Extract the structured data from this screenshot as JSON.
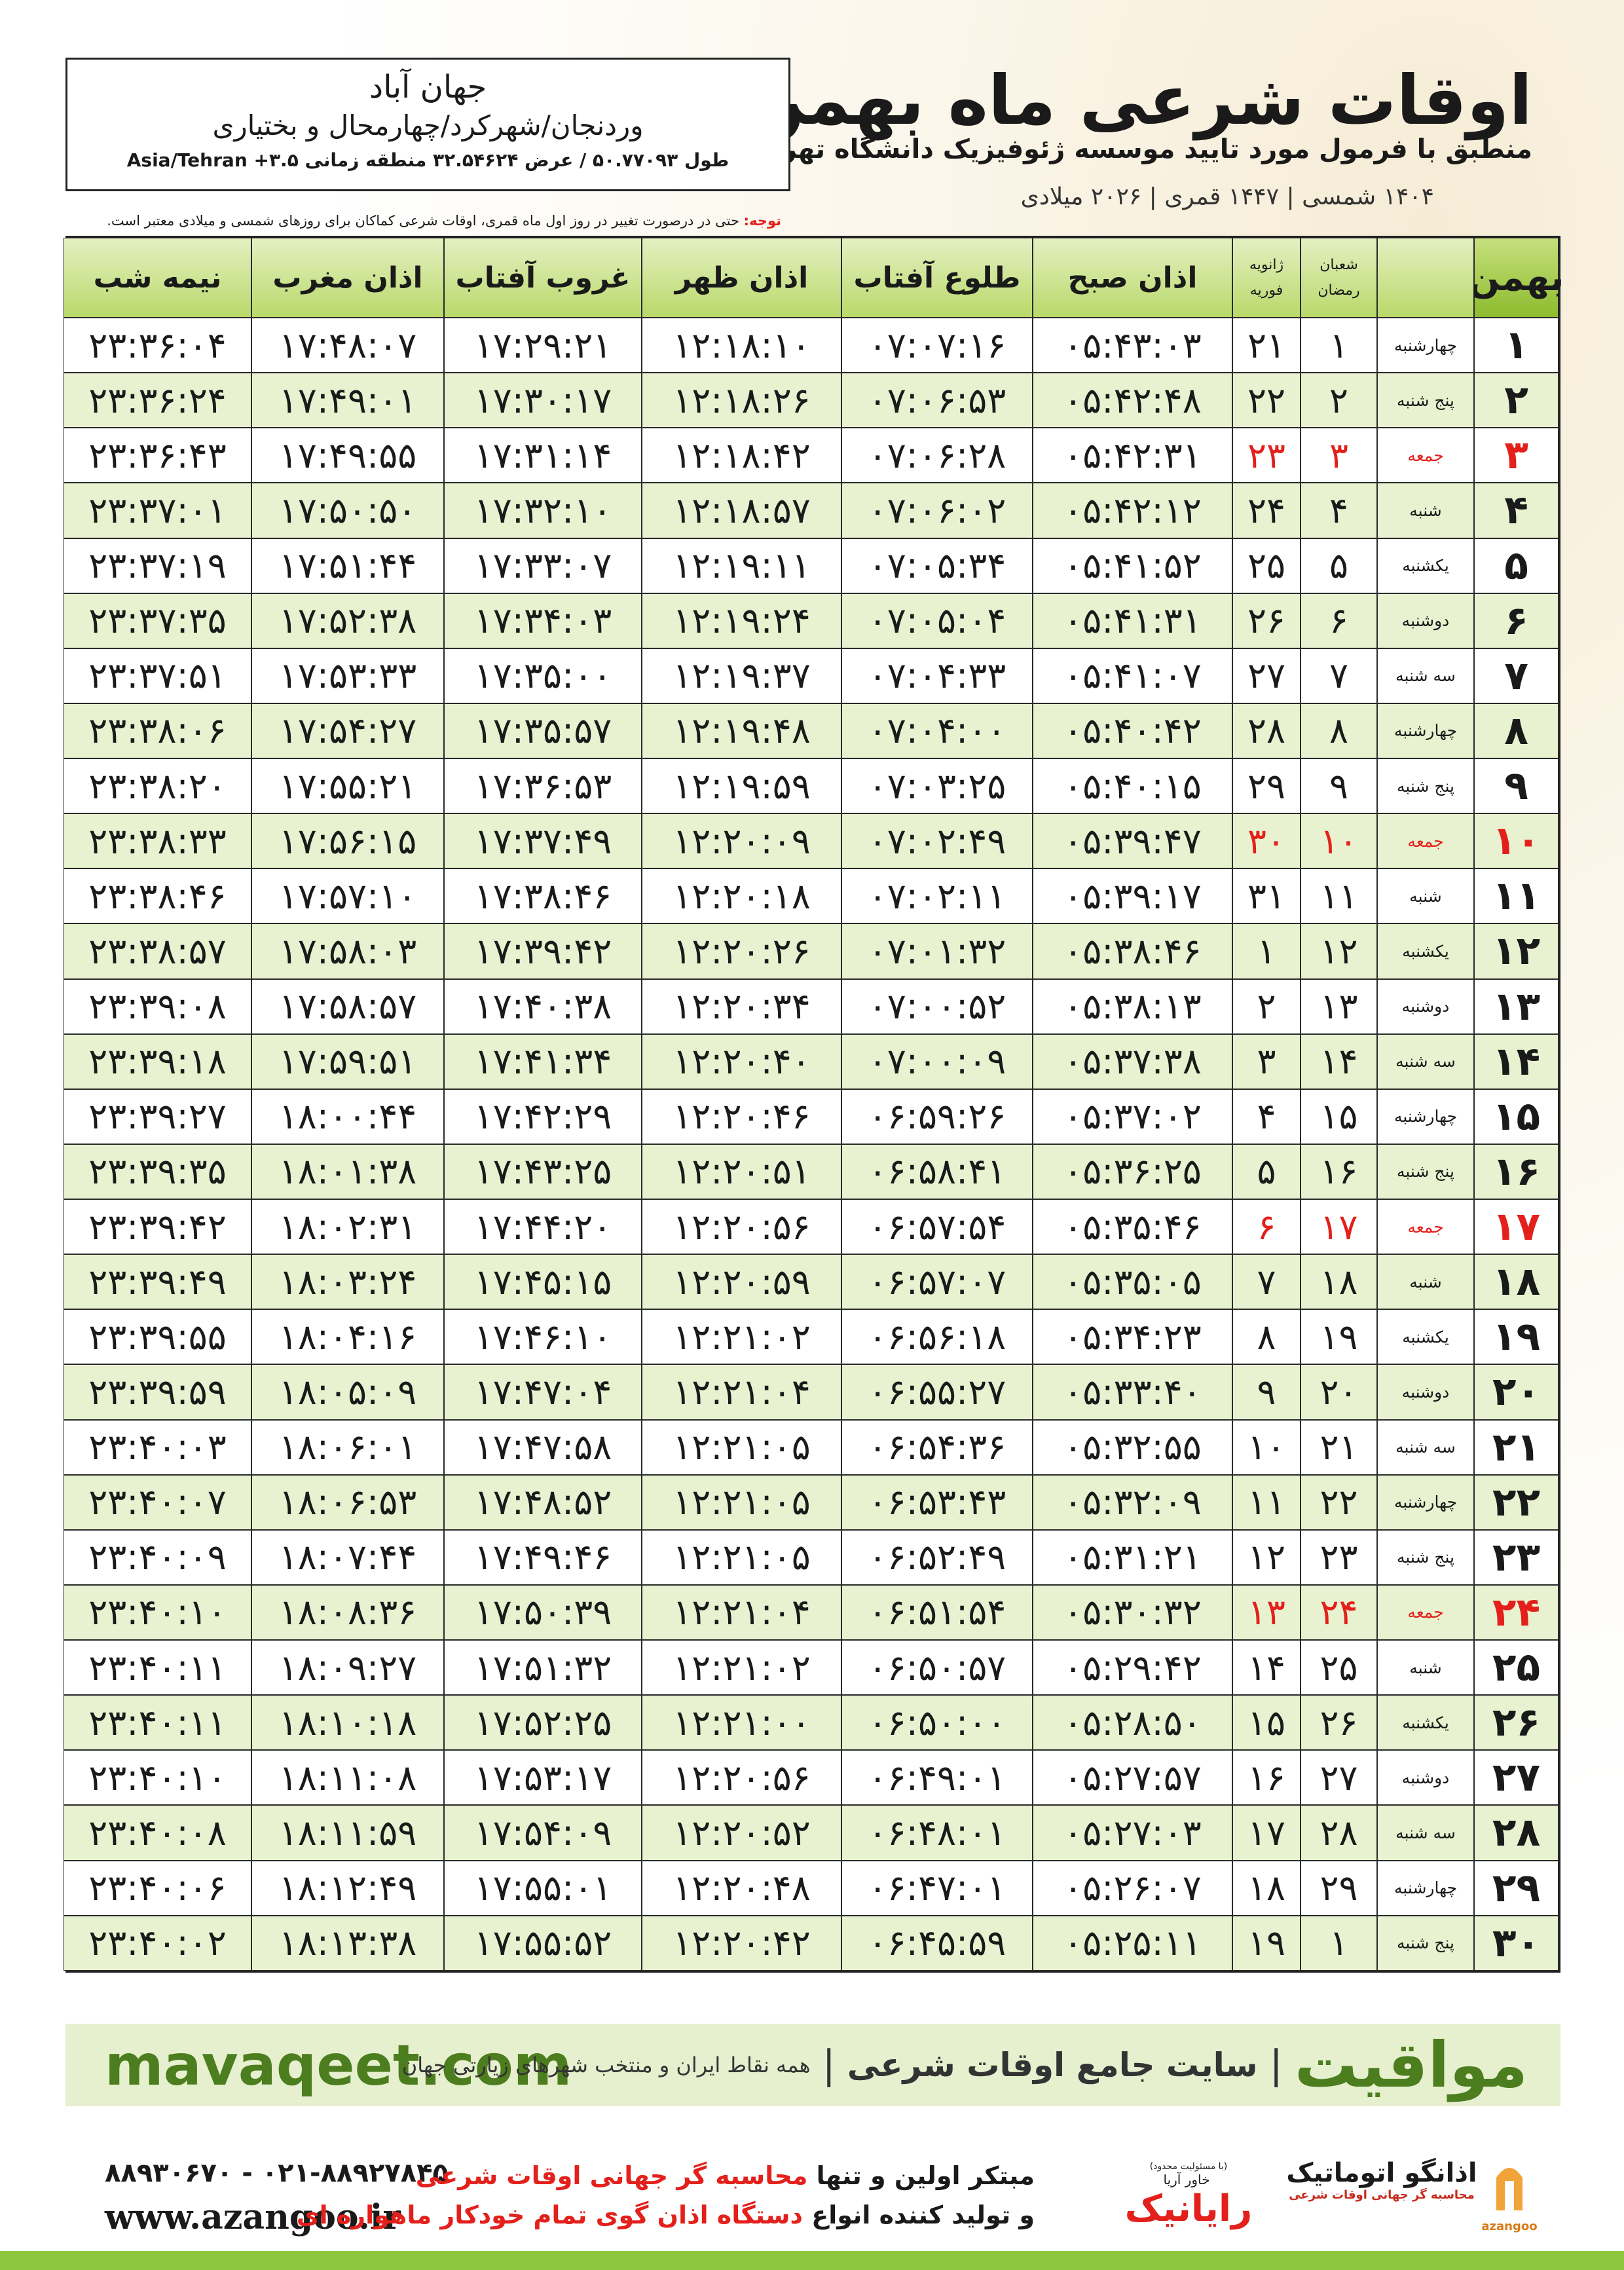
{
  "header": {
    "title": "اوقات شرعی ماه بهمن",
    "subtitle": "منطبق با فرمول مورد تایید موسسه ژئوفیزیک دانشگاه تهران",
    "dates": "۱۴۰۴ شمسی | ۱۴۴۷ قمری | ۲۰۲۶ میلادی"
  },
  "location": {
    "name": "جهان آباد",
    "region": "وردنجان/شهرکرد/چهارمحال و بختیاری",
    "coords": "طول ۵۰.۷۷۰۹۳ / عرض ۳۲.۵۴۶۲۴ منطقه زمانی ۳.۵+ Asia/Tehran"
  },
  "note": {
    "label": "توجه:",
    "text": "حتی در درصورت تغییر در روز اول ماه قمری، اوقات شرعی کماکان برای روزهای شمسی و میلادی معتبر است."
  },
  "table": {
    "columns": [
      "بهمن",
      "",
      [
        "شعبان",
        "رمضان"
      ],
      [
        "ژانویه",
        "فوریه"
      ],
      "اذان صبح",
      "طلوع آفتاب",
      "اذان ظهر",
      "غروب آفتاب",
      "اذان مغرب",
      "نیمه شب"
    ],
    "rows": [
      {
        "cells": [
          "۱",
          "چهارشنبه",
          "۱",
          "۲۱",
          "۰۵:۴۳:۰۳",
          "۰۷:۰۷:۱۶",
          "۱۲:۱۸:۱۰",
          "۱۷:۲۹:۲۱",
          "۱۷:۴۸:۰۷",
          "۲۳:۳۶:۰۴"
        ]
      },
      {
        "cells": [
          "۲",
          "پنج شنبه",
          "۲",
          "۲۲",
          "۰۵:۴۲:۴۸",
          "۰۷:۰۶:۵۳",
          "۱۲:۱۸:۲۶",
          "۱۷:۳۰:۱۷",
          "۱۷:۴۹:۰۱",
          "۲۳:۳۶:۲۴"
        ]
      },
      {
        "cells": [
          "۳",
          "جمعه",
          "۳",
          "۲۳",
          "۰۵:۴۲:۳۱",
          "۰۷:۰۶:۲۸",
          "۱۲:۱۸:۴۲",
          "۱۷:۳۱:۱۴",
          "۱۷:۴۹:۵۵",
          "۲۳:۳۶:۴۳"
        ],
        "color": "#e3201b"
      },
      {
        "cells": [
          "۴",
          "شنبه",
          "۴",
          "۲۴",
          "۰۵:۴۲:۱۲",
          "۰۷:۰۶:۰۲",
          "۱۲:۱۸:۵۷",
          "۱۷:۳۲:۱۰",
          "۱۷:۵۰:۵۰",
          "۲۳:۳۷:۰۱"
        ]
      },
      {
        "cells": [
          "۵",
          "یکشنبه",
          "۵",
          "۲۵",
          "۰۵:۴۱:۵۲",
          "۰۷:۰۵:۳۴",
          "۱۲:۱۹:۱۱",
          "۱۷:۳۳:۰۷",
          "۱۷:۵۱:۴۴",
          "۲۳:۳۷:۱۹"
        ]
      },
      {
        "cells": [
          "۶",
          "دوشنبه",
          "۶",
          "۲۶",
          "۰۵:۴۱:۳۱",
          "۰۷:۰۵:۰۴",
          "۱۲:۱۹:۲۴",
          "۱۷:۳۴:۰۳",
          "۱۷:۵۲:۳۸",
          "۲۳:۳۷:۳۵"
        ]
      },
      {
        "cells": [
          "۷",
          "سه شنبه",
          "۷",
          "۲۷",
          "۰۵:۴۱:۰۷",
          "۰۷:۰۴:۳۳",
          "۱۲:۱۹:۳۷",
          "۱۷:۳۵:۰۰",
          "۱۷:۵۳:۳۳",
          "۲۳:۳۷:۵۱"
        ]
      },
      {
        "cells": [
          "۸",
          "چهارشنبه",
          "۸",
          "۲۸",
          "۰۵:۴۰:۴۲",
          "۰۷:۰۴:۰۰",
          "۱۲:۱۹:۴۸",
          "۱۷:۳۵:۵۷",
          "۱۷:۵۴:۲۷",
          "۲۳:۳۸:۰۶"
        ]
      },
      {
        "cells": [
          "۹",
          "پنج شنبه",
          "۹",
          "۲۹",
          "۰۵:۴۰:۱۵",
          "۰۷:۰۳:۲۵",
          "۱۲:۱۹:۵۹",
          "۱۷:۳۶:۵۳",
          "۱۷:۵۵:۲۱",
          "۲۳:۳۸:۲۰"
        ]
      },
      {
        "cells": [
          "۱۰",
          "جمعه",
          "۱۰",
          "۳۰",
          "۰۵:۳۹:۴۷",
          "۰۷:۰۲:۴۹",
          "۱۲:۲۰:۰۹",
          "۱۷:۳۷:۴۹",
          "۱۷:۵۶:۱۵",
          "۲۳:۳۸:۳۳"
        ],
        "color": "#e3201b"
      },
      {
        "cells": [
          "۱۱",
          "شنبه",
          "۱۱",
          "۳۱",
          "۰۵:۳۹:۱۷",
          "۰۷:۰۲:۱۱",
          "۱۲:۲۰:۱۸",
          "۱۷:۳۸:۴۶",
          "۱۷:۵۷:۱۰",
          "۲۳:۳۸:۴۶"
        ]
      },
      {
        "cells": [
          "۱۲",
          "یکشنبه",
          "۱۲",
          "۱",
          "۰۵:۳۸:۴۶",
          "۰۷:۰۱:۳۲",
          "۱۲:۲۰:۲۶",
          "۱۷:۳۹:۴۲",
          "۱۷:۵۸:۰۳",
          "۲۳:۳۸:۵۷"
        ]
      },
      {
        "cells": [
          "۱۳",
          "دوشنبه",
          "۱۳",
          "۲",
          "۰۵:۳۸:۱۳",
          "۰۷:۰۰:۵۲",
          "۱۲:۲۰:۳۴",
          "۱۷:۴۰:۳۸",
          "۱۷:۵۸:۵۷",
          "۲۳:۳۹:۰۸"
        ]
      },
      {
        "cells": [
          "۱۴",
          "سه شنبه",
          "۱۴",
          "۳",
          "۰۵:۳۷:۳۸",
          "۰۷:۰۰:۰۹",
          "۱۲:۲۰:۴۰",
          "۱۷:۴۱:۳۴",
          "۱۷:۵۹:۵۱",
          "۲۳:۳۹:۱۸"
        ]
      },
      {
        "cells": [
          "۱۵",
          "چهارشنبه",
          "۱۵",
          "۴",
          "۰۵:۳۷:۰۲",
          "۰۶:۵۹:۲۶",
          "۱۲:۲۰:۴۶",
          "۱۷:۴۲:۲۹",
          "۱۸:۰۰:۴۴",
          "۲۳:۳۹:۲۷"
        ]
      },
      {
        "cells": [
          "۱۶",
          "پنج شنبه",
          "۱۶",
          "۵",
          "۰۵:۳۶:۲۵",
          "۰۶:۵۸:۴۱",
          "۱۲:۲۰:۵۱",
          "۱۷:۴۳:۲۵",
          "۱۸:۰۱:۳۸",
          "۲۳:۳۹:۳۵"
        ]
      },
      {
        "cells": [
          "۱۷",
          "جمعه",
          "۱۷",
          "۶",
          "۰۵:۳۵:۴۶",
          "۰۶:۵۷:۵۴",
          "۱۲:۲۰:۵۶",
          "۱۷:۴۴:۲۰",
          "۱۸:۰۲:۳۱",
          "۲۳:۳۹:۴۲"
        ],
        "color": "#e3201b"
      },
      {
        "cells": [
          "۱۸",
          "شنبه",
          "۱۸",
          "۷",
          "۰۵:۳۵:۰۵",
          "۰۶:۵۷:۰۷",
          "۱۲:۲۰:۵۹",
          "۱۷:۴۵:۱۵",
          "۱۸:۰۳:۲۴",
          "۲۳:۳۹:۴۹"
        ]
      },
      {
        "cells": [
          "۱۹",
          "یکشنبه",
          "۱۹",
          "۸",
          "۰۵:۳۴:۲۳",
          "۰۶:۵۶:۱۸",
          "۱۲:۲۱:۰۲",
          "۱۷:۴۶:۱۰",
          "۱۸:۰۴:۱۶",
          "۲۳:۳۹:۵۵"
        ]
      },
      {
        "cells": [
          "۲۰",
          "دوشنبه",
          "۲۰",
          "۹",
          "۰۵:۳۳:۴۰",
          "۰۶:۵۵:۲۷",
          "۱۲:۲۱:۰۴",
          "۱۷:۴۷:۰۴",
          "۱۸:۰۵:۰۹",
          "۲۳:۳۹:۵۹"
        ]
      },
      {
        "cells": [
          "۲۱",
          "سه شنبه",
          "۲۱",
          "۱۰",
          "۰۵:۳۲:۵۵",
          "۰۶:۵۴:۳۶",
          "۱۲:۲۱:۰۵",
          "۱۷:۴۷:۵۸",
          "۱۸:۰۶:۰۱",
          "۲۳:۴۰:۰۳"
        ]
      },
      {
        "cells": [
          "۲۲",
          "چهارشنبه",
          "۲۲",
          "۱۱",
          "۰۵:۳۲:۰۹",
          "۰۶:۵۳:۴۳",
          "۱۲:۲۱:۰۵",
          "۱۷:۴۸:۵۲",
          "۱۸:۰۶:۵۳",
          "۲۳:۴۰:۰۷"
        ]
      },
      {
        "cells": [
          "۲۳",
          "پنج شنبه",
          "۲۳",
          "۱۲",
          "۰۵:۳۱:۲۱",
          "۰۶:۵۲:۴۹",
          "۱۲:۲۱:۰۵",
          "۱۷:۴۹:۴۶",
          "۱۸:۰۷:۴۴",
          "۲۳:۴۰:۰۹"
        ]
      },
      {
        "cells": [
          "۲۴",
          "جمعه",
          "۲۴",
          "۱۳",
          "۰۵:۳۰:۳۲",
          "۰۶:۵۱:۵۴",
          "۱۲:۲۱:۰۴",
          "۱۷:۵۰:۳۹",
          "۱۸:۰۸:۳۶",
          "۲۳:۴۰:۱۰"
        ],
        "color": "#e3201b"
      },
      {
        "cells": [
          "۲۵",
          "شنبه",
          "۲۵",
          "۱۴",
          "۰۵:۲۹:۴۲",
          "۰۶:۵۰:۵۷",
          "۱۲:۲۱:۰۲",
          "۱۷:۵۱:۳۲",
          "۱۸:۰۹:۲۷",
          "۲۳:۴۰:۱۱"
        ]
      },
      {
        "cells": [
          "۲۶",
          "یکشنبه",
          "۲۶",
          "۱۵",
          "۰۵:۲۸:۵۰",
          "۰۶:۵۰:۰۰",
          "۱۲:۲۱:۰۰",
          "۱۷:۵۲:۲۵",
          "۱۸:۱۰:۱۸",
          "۲۳:۴۰:۱۱"
        ]
      },
      {
        "cells": [
          "۲۷",
          "دوشنبه",
          "۲۷",
          "۱۶",
          "۰۵:۲۷:۵۷",
          "۰۶:۴۹:۰۱",
          "۱۲:۲۰:۵۶",
          "۱۷:۵۳:۱۷",
          "۱۸:۱۱:۰۸",
          "۲۳:۴۰:۱۰"
        ]
      },
      {
        "cells": [
          "۲۸",
          "سه شنبه",
          "۲۸",
          "۱۷",
          "۰۵:۲۷:۰۳",
          "۰۶:۴۸:۰۱",
          "۱۲:۲۰:۵۲",
          "۱۷:۵۴:۰۹",
          "۱۸:۱۱:۵۹",
          "۲۳:۴۰:۰۸"
        ]
      },
      {
        "cells": [
          "۲۹",
          "چهارشنبه",
          "۲۹",
          "۱۸",
          "۰۵:۲۶:۰۷",
          "۰۶:۴۷:۰۱",
          "۱۲:۲۰:۴۸",
          "۱۷:۵۵:۰۱",
          "۱۸:۱۲:۴۹",
          "۲۳:۴۰:۰۶"
        ]
      },
      {
        "cells": [
          "۳۰",
          "پنج شنبه",
          "۱",
          "۱۹",
          "۰۵:۲۵:۱۱",
          "۰۶:۴۵:۵۹",
          "۱۲:۲۰:۴۲",
          "۱۷:۵۵:۵۲",
          "۱۸:۱۳:۳۸",
          "۲۳:۴۰:۰۲"
        ]
      }
    ]
  },
  "banner": {
    "site": "mavaqeet.com",
    "brand": "مواقیت",
    "slogan": "سایت جامع اوقات شرعی",
    "tagline": "همه نقاط ایران و منتخب شهرهای زیارتی جهان"
  },
  "footer": {
    "phone": "۰۲۱-۸۸۹۲۷۸۴۵ - ۸۸۹۳۰۶۷۰",
    "website": "www.azangoo.ir",
    "line1": [
      "مبتکر اولین و تنها ",
      "محاسبه گر جهانی اوقات شرعی"
    ],
    "line2": [
      "و تولید کننده انواع ",
      "دستگاه اذان گوی تمام خودکار ماهواره ای"
    ],
    "rayanik": {
      "note": "(با مسئولیت محدود)",
      "name": "رایانیک",
      "sub": "خاور آریا"
    },
    "azangoo": {
      "name": "اذانگو اتوماتیک",
      "sub": "محاسبه گر جهانی اوقات شرعی",
      "latin": "azangoo"
    }
  }
}
